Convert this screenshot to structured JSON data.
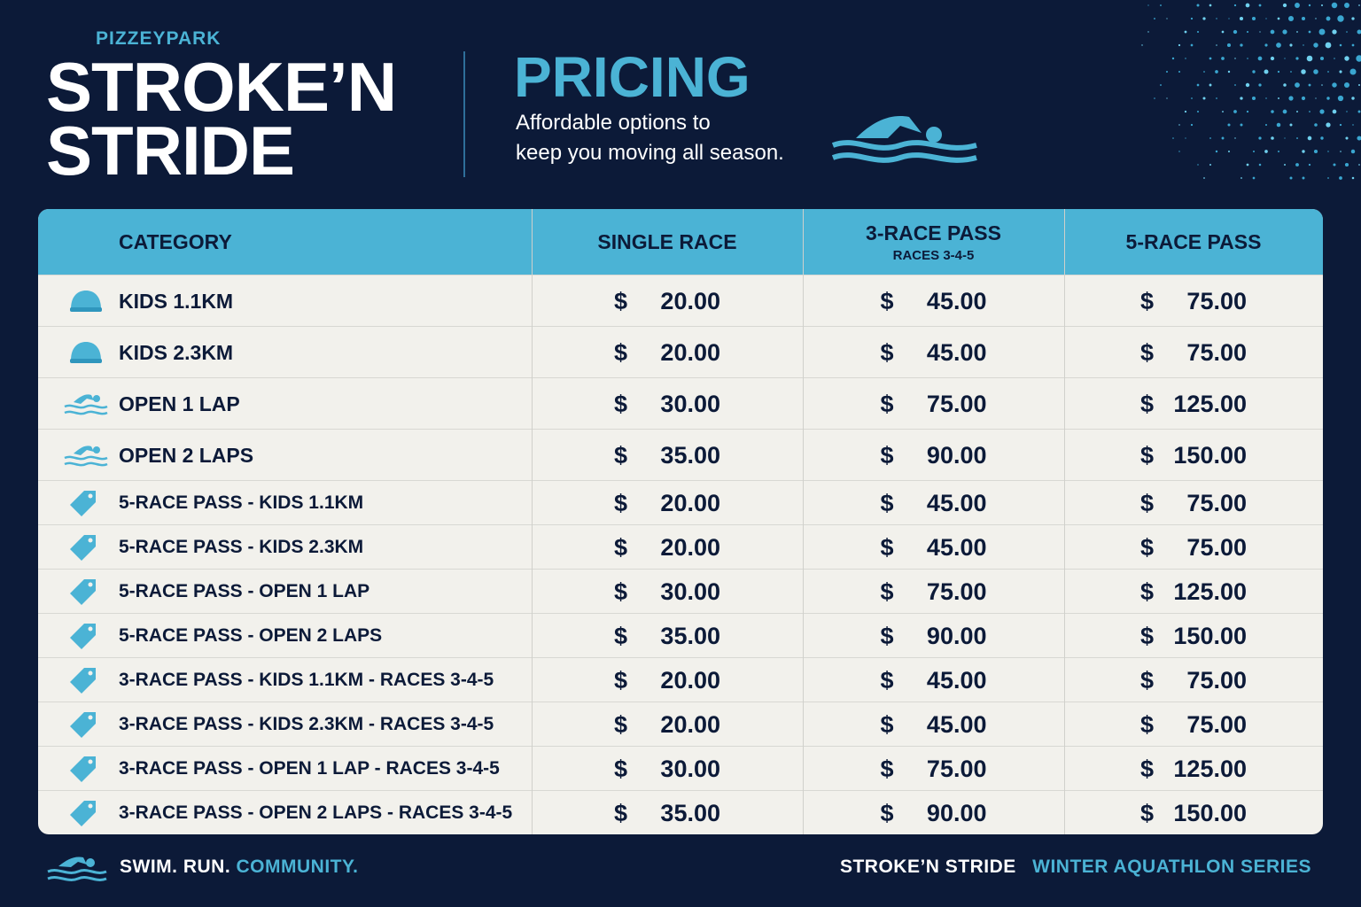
{
  "header": {
    "brand": "PIZZEYPARK",
    "title_lines": [
      "STROKE’N",
      "STRIDE"
    ],
    "heading": "PRICING",
    "tagline_lines": [
      "Affordable options to",
      "keep you moving all season."
    ]
  },
  "table": {
    "columns": [
      {
        "label": "CATEGORY"
      },
      {
        "label": "SINGLE RACE"
      },
      {
        "label": "3-RACE PASS",
        "sublabel": "RACES 3-4-5"
      },
      {
        "label": "5-RACE PASS"
      }
    ],
    "currency": "$",
    "rows": [
      {
        "icon": "cap",
        "category": "KIDS 1.1KM",
        "prices": [
          "20.00",
          "45.00",
          "75.00"
        ]
      },
      {
        "icon": "cap",
        "category": "KIDS 2.3KM",
        "prices": [
          "20.00",
          "45.00",
          "75.00"
        ]
      },
      {
        "icon": "swim",
        "category": "OPEN 1 LAP",
        "prices": [
          "30.00",
          "75.00",
          "125.00"
        ]
      },
      {
        "icon": "swim",
        "category": "OPEN 2 LAPS",
        "prices": [
          "35.00",
          "90.00",
          "150.00"
        ]
      },
      {
        "icon": "tag",
        "category": "5-RACE PASS - KIDS 1.1KM",
        "prices": [
          "20.00",
          "45.00",
          "75.00"
        ]
      },
      {
        "icon": "tag",
        "category": "5-RACE PASS - KIDS 2.3KM",
        "prices": [
          "20.00",
          "45.00",
          "75.00"
        ]
      },
      {
        "icon": "tag",
        "category": "5-RACE PASS - OPEN 1 LAP",
        "prices": [
          "30.00",
          "75.00",
          "125.00"
        ]
      },
      {
        "icon": "tag",
        "category": "5-RACE PASS - OPEN 2 LAPS",
        "prices": [
          "35.00",
          "90.00",
          "150.00"
        ]
      },
      {
        "icon": "tag",
        "category": "3-RACE PASS - KIDS 1.1KM - RACES 3-4-5",
        "prices": [
          "20.00",
          "45.00",
          "75.00"
        ]
      },
      {
        "icon": "tag",
        "category": "3-RACE PASS - KIDS 2.3KM - RACES 3-4-5",
        "prices": [
          "20.00",
          "45.00",
          "75.00"
        ]
      },
      {
        "icon": "tag",
        "category": "3-RACE PASS - OPEN 1 LAP - RACES 3-4-5",
        "prices": [
          "30.00",
          "75.00",
          "125.00"
        ]
      },
      {
        "icon": "tag",
        "category": "3-RACE PASS - OPEN 2 LAPS - RACES 3-4-5",
        "prices": [
          "35.00",
          "90.00",
          "150.00"
        ]
      }
    ]
  },
  "footer": {
    "left": [
      "SWIM. RUN.",
      "COMMUNITY."
    ],
    "right": [
      "STROKE’N STRIDE",
      "WINTER AQUATHLON SERIES"
    ]
  }
}
